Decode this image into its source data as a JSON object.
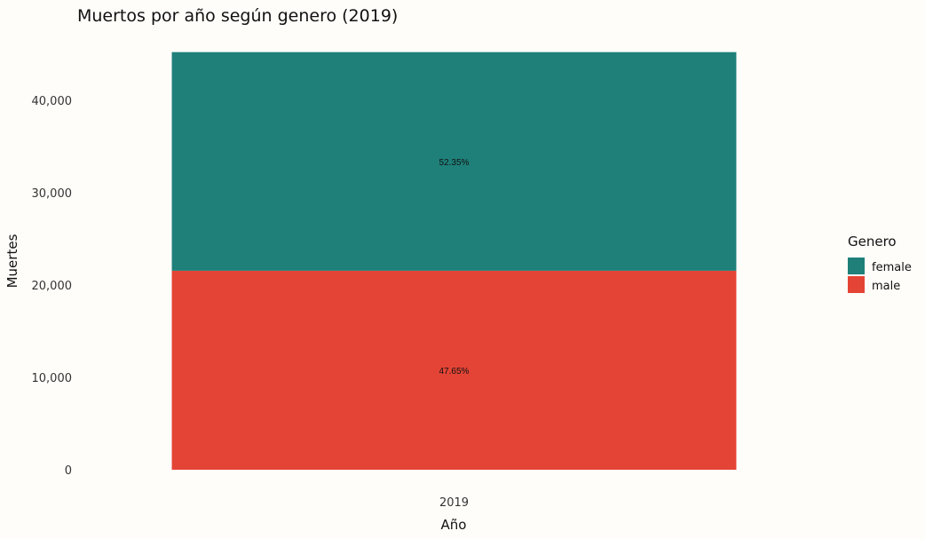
{
  "chart_data": {
    "type": "bar",
    "stacked": true,
    "title": "Muertos por año según genero (2019)",
    "xlabel": "Año",
    "ylabel": "Muertes",
    "categories": [
      "2019"
    ],
    "ylim": [
      0,
      45200
    ],
    "yticks": [
      0,
      10000,
      20000,
      30000,
      40000
    ],
    "ytick_labels": [
      "0",
      "10,000",
      "20,000",
      "30,000",
      "40,000"
    ],
    "grid": false,
    "legend": {
      "title": "Genero",
      "placement": "right",
      "entries": [
        "female",
        "male"
      ]
    },
    "series": [
      {
        "name": "male",
        "values": [
          21550
        ],
        "label": "47.65%",
        "color": "#E44435"
      },
      {
        "name": "female",
        "values": [
          23680
        ],
        "label": "52.35%",
        "color": "#1F807A"
      }
    ]
  }
}
